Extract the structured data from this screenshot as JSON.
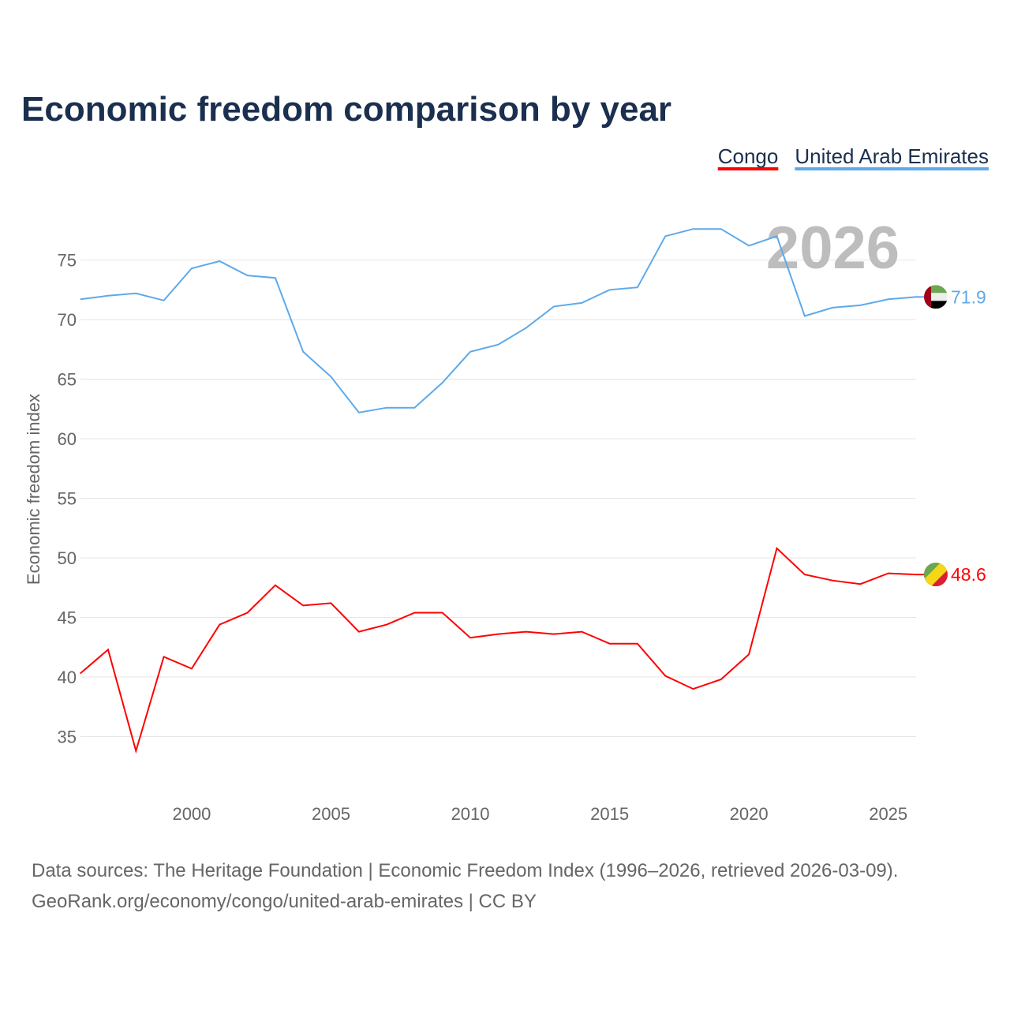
{
  "chart_data": {
    "type": "line",
    "title": "Economic freedom comparison by year",
    "xlabel": "",
    "ylabel": "Economic freedom index",
    "xlim": [
      1996,
      2026
    ],
    "ylim": [
      30,
      80
    ],
    "x_ticks": [
      2000,
      2005,
      2010,
      2015,
      2020,
      2025
    ],
    "y_ticks": [
      35,
      40,
      45,
      50,
      55,
      60,
      65,
      70,
      75
    ],
    "grid": true,
    "legend_position": "top-right",
    "year_watermark": "2026",
    "x": [
      1996,
      1997,
      1998,
      1999,
      2000,
      2001,
      2002,
      2003,
      2004,
      2005,
      2006,
      2007,
      2008,
      2009,
      2010,
      2011,
      2012,
      2013,
      2014,
      2015,
      2016,
      2017,
      2018,
      2019,
      2020,
      2021,
      2022,
      2023,
      2024,
      2025,
      2026
    ],
    "series": [
      {
        "name": "Congo",
        "color": "#ff0000",
        "end_label": "48.6",
        "flag": "congo-flag",
        "values": [
          40.3,
          42.3,
          33.8,
          41.7,
          40.7,
          44.4,
          45.4,
          47.7,
          46.0,
          46.2,
          43.8,
          44.4,
          45.4,
          45.4,
          43.3,
          43.6,
          43.8,
          43.6,
          43.8,
          42.8,
          42.8,
          40.1,
          39.0,
          39.8,
          41.9,
          50.8,
          48.6,
          48.1,
          47.8,
          48.7,
          48.6
        ]
      },
      {
        "name": "United Arab Emirates",
        "color": "#5ea9ea",
        "end_label": "71.9",
        "flag": "uae-flag",
        "values": [
          71.7,
          72.0,
          72.2,
          71.6,
          74.3,
          74.9,
          73.7,
          73.5,
          67.3,
          65.2,
          62.2,
          62.6,
          62.6,
          64.7,
          67.3,
          67.9,
          69.3,
          71.1,
          71.4,
          72.5,
          72.7,
          77.0,
          77.6,
          77.6,
          76.2,
          77.0,
          70.3,
          71.0,
          71.2,
          71.7,
          71.9
        ]
      }
    ]
  },
  "footer": {
    "source_line": "Data sources: The Heritage Foundation | Economic Freedom Index (1996–2026, retrieved 2026-03-09).",
    "url_line": "GeoRank.org/economy/congo/united-arab-emirates | CC BY"
  }
}
